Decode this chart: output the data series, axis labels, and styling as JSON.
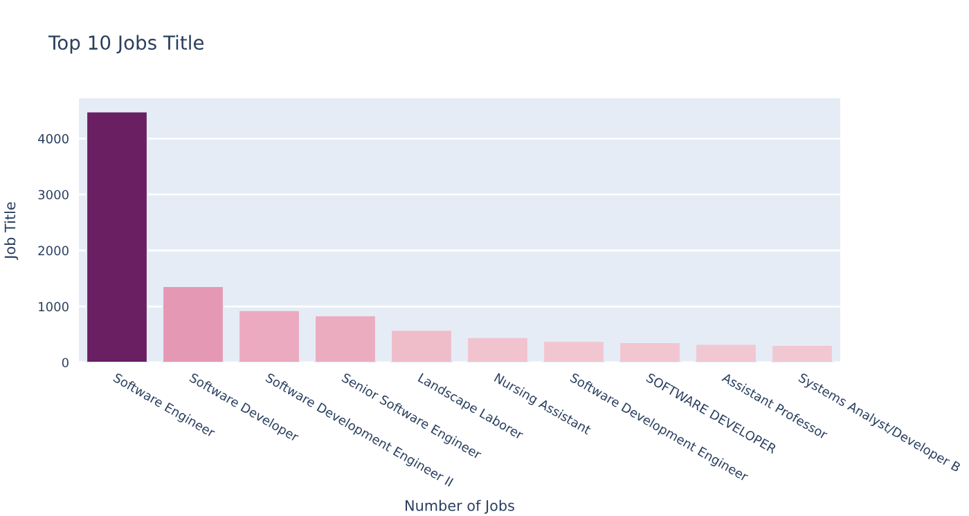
{
  "chart_data": {
    "type": "bar",
    "title": "Top 10 Jobs Title",
    "xlabel": "Number of Jobs",
    "ylabel": "Job Title",
    "categories": [
      "Software Engineer",
      "Software Developer",
      "Software Development Engineer II",
      "Senior Software Engineer",
      "Landscape Laborer",
      "Nursing Assistant",
      "Software Development Engineer",
      "SOFTWARE DEVELOPER",
      "Assistant Professor",
      "Systems Analyst/Developer B"
    ],
    "values": [
      4480,
      1360,
      930,
      840,
      580,
      450,
      380,
      360,
      330,
      310
    ],
    "colors": [
      "#6a1f63",
      "#e498b4",
      "#ebaabf",
      "#ebacc0",
      "#efbdca",
      "#f1c3ce",
      "#f1c6d0",
      "#f1c6d0",
      "#f1c7d1",
      "#f1c8d1"
    ],
    "ylim": [
      0,
      4720
    ],
    "yticks": [
      0,
      1000,
      2000,
      3000,
      4000
    ],
    "grid": "y"
  }
}
